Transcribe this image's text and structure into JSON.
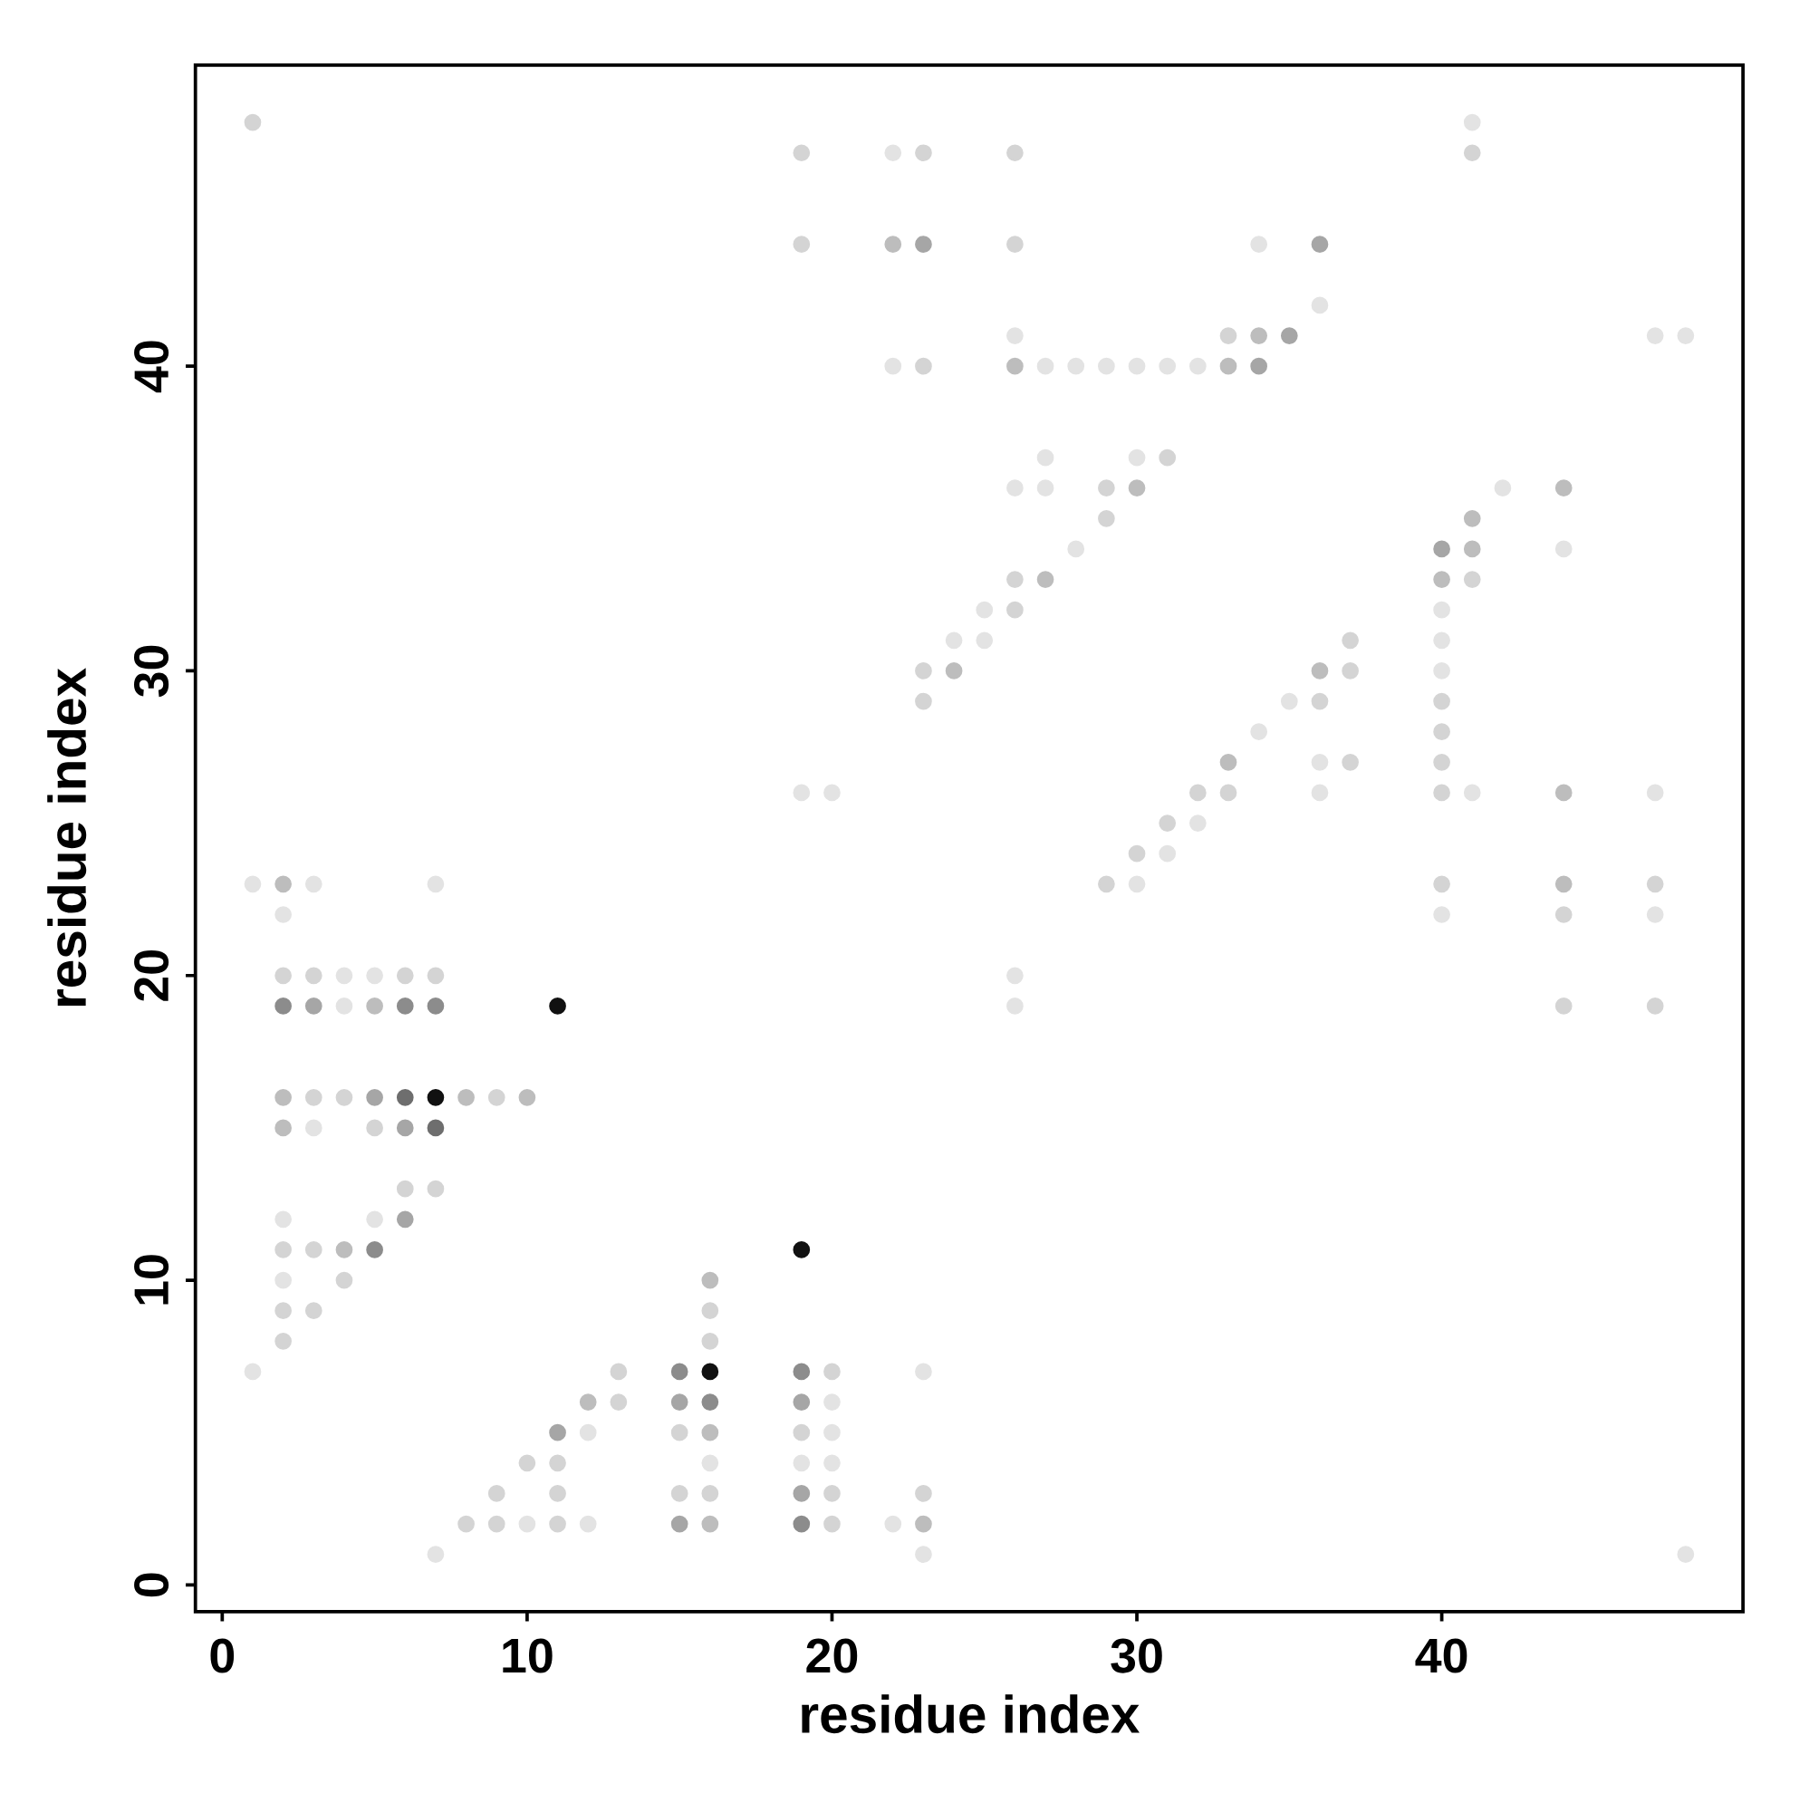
{
  "chart_data": {
    "type": "scatter",
    "xlabel": "residue index",
    "ylabel": "residue index",
    "xlim": [
      -0.88,
      49.88
    ],
    "ylim": [
      -0.88,
      49.88
    ],
    "xticks": [
      0,
      10,
      20,
      30,
      40
    ],
    "yticks": [
      0,
      10,
      20,
      30,
      40
    ],
    "marker": "circle",
    "series": [
      {
        "color": "#e3e3e3",
        "x": [
          41,
          22,
          34,
          36,
          26,
          47,
          48,
          22,
          27,
          28,
          29,
          30,
          31,
          32,
          27,
          30,
          26,
          27,
          42,
          28,
          44,
          25,
          40,
          24,
          25,
          40,
          40,
          35,
          34,
          36,
          19,
          20,
          36,
          41,
          47,
          32,
          31,
          1,
          3,
          7,
          30,
          2,
          40,
          47,
          4,
          5,
          26,
          4,
          26,
          3,
          2,
          5,
          2,
          1,
          23,
          20,
          12,
          20,
          16,
          19,
          20,
          10,
          12,
          22,
          7,
          23,
          48
        ],
        "values": [
          48,
          47,
          44,
          42,
          41,
          41,
          41,
          40,
          40,
          40,
          40,
          40,
          40,
          40,
          37,
          37,
          36,
          36,
          36,
          34,
          34,
          32,
          32,
          31,
          31,
          31,
          30,
          29,
          28,
          27,
          26,
          26,
          26,
          26,
          26,
          25,
          24,
          23,
          23,
          23,
          23,
          22,
          22,
          22,
          20,
          20,
          20,
          19,
          19,
          15,
          12,
          12,
          10,
          7,
          7,
          6,
          5,
          5,
          4,
          4,
          4,
          2,
          2,
          2,
          1,
          1,
          1
        ]
      },
      {
        "color": "#d4d4d4",
        "x": [
          1,
          19,
          23,
          26,
          41,
          19,
          26,
          33,
          23,
          31,
          29,
          29,
          26,
          41,
          26,
          37,
          23,
          37,
          23,
          36,
          40,
          40,
          37,
          40,
          32,
          33,
          40,
          31,
          30,
          29,
          40,
          47,
          44,
          2,
          3,
          6,
          7,
          44,
          47,
          3,
          4,
          9,
          5,
          6,
          7,
          2,
          3,
          4,
          2,
          3,
          16,
          2,
          16,
          13,
          20,
          13,
          15,
          19,
          10,
          11,
          9,
          11,
          15,
          16,
          20,
          23,
          8,
          9,
          11,
          20
        ],
        "values": [
          48,
          47,
          47,
          47,
          47,
          44,
          44,
          41,
          40,
          37,
          36,
          35,
          33,
          33,
          32,
          31,
          30,
          30,
          29,
          29,
          29,
          28,
          27,
          27,
          26,
          26,
          26,
          25,
          24,
          23,
          23,
          23,
          22,
          20,
          20,
          20,
          20,
          19,
          19,
          16,
          16,
          16,
          15,
          13,
          13,
          11,
          11,
          10,
          9,
          9,
          9,
          8,
          8,
          7,
          7,
          6,
          5,
          5,
          4,
          4,
          3,
          3,
          3,
          3,
          3,
          3,
          2,
          2,
          2,
          2
        ]
      },
      {
        "color": "#bdbdbd",
        "x": [
          22,
          34,
          26,
          33,
          30,
          44,
          41,
          41,
          27,
          40,
          24,
          36,
          33,
          44,
          2,
          44,
          5,
          2,
          8,
          10,
          2,
          4,
          16,
          12,
          16,
          16,
          23
        ],
        "values": [
          44,
          41,
          40,
          40,
          36,
          36,
          35,
          34,
          33,
          33,
          30,
          30,
          27,
          26,
          23,
          23,
          19,
          16,
          16,
          16,
          15,
          11,
          10,
          6,
          5,
          2,
          2
        ]
      },
      {
        "color": "#a6a6a6",
        "x": [
          23,
          36,
          35,
          34,
          40,
          3,
          5,
          6,
          6,
          15,
          19,
          11,
          19,
          15
        ],
        "values": [
          44,
          44,
          41,
          40,
          34,
          19,
          16,
          15,
          12,
          6,
          6,
          5,
          3,
          2
        ]
      },
      {
        "color": "#8c8c8c",
        "x": [
          2,
          6,
          7,
          5,
          15,
          19,
          16,
          19
        ],
        "values": [
          19,
          19,
          19,
          11,
          7,
          7,
          6,
          2
        ]
      },
      {
        "color": "#6e6e6e",
        "x": [
          6,
          7
        ],
        "values": [
          16,
          15
        ]
      },
      {
        "color": "#111111",
        "x": [
          11,
          7,
          19,
          16
        ],
        "values": [
          19,
          16,
          11,
          7
        ]
      }
    ]
  }
}
